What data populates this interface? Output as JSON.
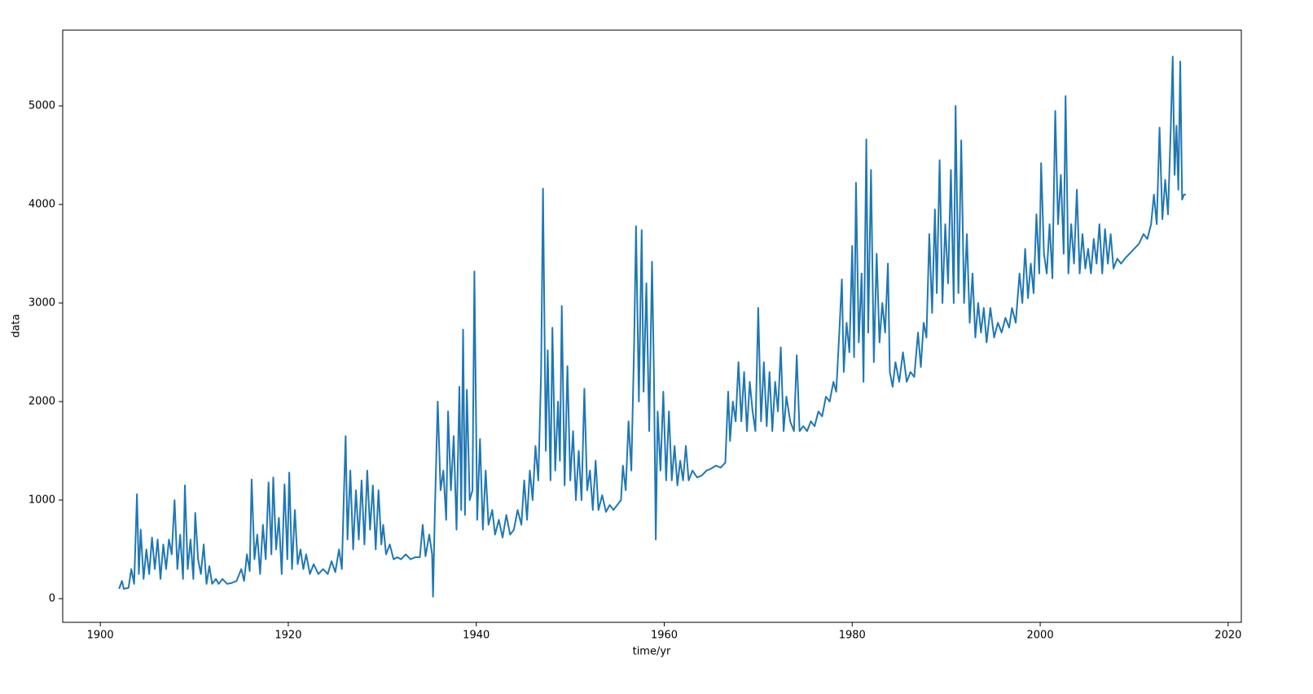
{
  "chart_data": {
    "type": "line",
    "xlabel": "time/yr",
    "ylabel": "data",
    "color": "#1f77b4",
    "xlim": [
      1896.0,
      2021.4
    ],
    "ylim": [
      -240,
      5769
    ],
    "xticks": [
      1900,
      1920,
      1940,
      1960,
      1980,
      2000,
      2020
    ],
    "yticks": [
      0,
      1000,
      2000,
      3000,
      4000,
      5000
    ],
    "x": [
      1902.0,
      1902.3,
      1902.5,
      1903.0,
      1903.3,
      1903.6,
      1903.9,
      1904.1,
      1904.3,
      1904.6,
      1904.9,
      1905.2,
      1905.5,
      1905.8,
      1906.1,
      1906.4,
      1906.7,
      1907.0,
      1907.3,
      1907.6,
      1907.9,
      1908.2,
      1908.5,
      1908.8,
      1909.0,
      1909.3,
      1909.6,
      1909.9,
      1910.1,
      1910.4,
      1910.7,
      1911.0,
      1911.3,
      1911.6,
      1911.9,
      1912.3,
      1912.6,
      1913.0,
      1913.5,
      1914.0,
      1914.5,
      1915.0,
      1915.3,
      1915.6,
      1915.9,
      1916.1,
      1916.4,
      1916.7,
      1917.0,
      1917.3,
      1917.6,
      1917.9,
      1918.2,
      1918.4,
      1918.7,
      1919.0,
      1919.3,
      1919.6,
      1919.9,
      1920.1,
      1920.4,
      1920.7,
      1921.0,
      1921.3,
      1921.6,
      1921.9,
      1922.3,
      1922.7,
      1923.2,
      1923.7,
      1924.2,
      1924.6,
      1925.0,
      1925.4,
      1925.7,
      1925.9,
      1926.1,
      1926.3,
      1926.6,
      1926.9,
      1927.2,
      1927.5,
      1927.8,
      1928.1,
      1928.4,
      1928.7,
      1929.0,
      1929.3,
      1929.6,
      1929.9,
      1930.1,
      1930.4,
      1930.8,
      1931.2,
      1931.6,
      1932.0,
      1932.5,
      1933.0,
      1933.5,
      1934.0,
      1934.3,
      1934.6,
      1935.0,
      1935.3,
      1935.4,
      1935.6,
      1935.9,
      1936.2,
      1936.5,
      1936.8,
      1937.0,
      1937.3,
      1937.6,
      1937.9,
      1938.2,
      1938.4,
      1938.6,
      1938.8,
      1939.0,
      1939.3,
      1939.6,
      1939.8,
      1940.1,
      1940.4,
      1940.7,
      1941.0,
      1941.3,
      1941.7,
      1942.0,
      1942.4,
      1942.8,
      1943.2,
      1943.6,
      1944.0,
      1944.4,
      1944.8,
      1945.1,
      1945.4,
      1945.7,
      1946.0,
      1946.3,
      1946.6,
      1946.9,
      1947.1,
      1947.4,
      1947.6,
      1947.9,
      1948.1,
      1948.4,
      1948.7,
      1948.9,
      1949.1,
      1949.4,
      1949.7,
      1950.0,
      1950.3,
      1950.6,
      1950.9,
      1951.2,
      1951.5,
      1951.8,
      1952.1,
      1952.4,
      1952.7,
      1953.0,
      1953.4,
      1953.8,
      1954.2,
      1954.6,
      1955.0,
      1955.4,
      1955.6,
      1955.9,
      1956.2,
      1956.5,
      1956.8,
      1957.0,
      1957.3,
      1957.6,
      1957.8,
      1958.1,
      1958.4,
      1958.7,
      1958.9,
      1959.1,
      1959.3,
      1959.6,
      1959.9,
      1960.2,
      1960.5,
      1960.8,
      1961.1,
      1961.4,
      1961.7,
      1962.0,
      1962.3,
      1962.6,
      1963.0,
      1963.5,
      1964.0,
      1964.5,
      1965.0,
      1965.5,
      1966.0,
      1966.5,
      1966.8,
      1967.0,
      1967.3,
      1967.6,
      1967.9,
      1968.2,
      1968.5,
      1968.8,
      1969.1,
      1969.4,
      1969.7,
      1970.0,
      1970.3,
      1970.6,
      1970.9,
      1971.2,
      1971.5,
      1971.8,
      1972.1,
      1972.4,
      1972.7,
      1973.0,
      1973.4,
      1973.8,
      1974.1,
      1974.4,
      1974.8,
      1975.2,
      1975.6,
      1976.0,
      1976.4,
      1976.8,
      1977.2,
      1977.6,
      1978.0,
      1978.3,
      1978.6,
      1978.9,
      1979.1,
      1979.4,
      1979.7,
      1980.0,
      1980.2,
      1980.4,
      1980.7,
      1981.0,
      1981.2,
      1981.5,
      1981.7,
      1982.0,
      1982.3,
      1982.6,
      1982.9,
      1983.2,
      1983.5,
      1983.8,
      1984.0,
      1984.3,
      1984.6,
      1985.0,
      1985.4,
      1985.8,
      1986.2,
      1986.6,
      1987.0,
      1987.3,
      1987.6,
      1987.9,
      1988.2,
      1988.5,
      1988.8,
      1989.0,
      1989.3,
      1989.6,
      1989.9,
      1990.2,
      1990.5,
      1990.8,
      1991.0,
      1991.3,
      1991.6,
      1991.9,
      1992.2,
      1992.5,
      1992.8,
      1993.1,
      1993.4,
      1993.7,
      1994.0,
      1994.3,
      1994.7,
      1995.1,
      1995.5,
      1995.9,
      1996.3,
      1996.7,
      1997.0,
      1997.4,
      1997.8,
      1998.1,
      1998.4,
      1998.7,
      1999.0,
      1999.3,
      1999.6,
      1999.9,
      2000.1,
      2000.4,
      2000.7,
      2001.0,
      2001.3,
      2001.6,
      2001.9,
      2002.2,
      2002.5,
      2002.7,
      2003.0,
      2003.3,
      2003.6,
      2003.9,
      2004.2,
      2004.5,
      2004.8,
      2005.1,
      2005.4,
      2005.7,
      2006.0,
      2006.3,
      2006.6,
      2006.9,
      2007.2,
      2007.5,
      2007.8,
      2008.2,
      2008.6,
      2009.0,
      2009.5,
      2010.0,
      2010.5,
      2011.0,
      2011.4,
      2011.8,
      2012.1,
      2012.4,
      2012.7,
      2013.0,
      2013.3,
      2013.6,
      2013.9,
      2014.1,
      2014.3,
      2014.5,
      2014.7,
      2014.9,
      2015.1,
      2015.3,
      2015.5
    ],
    "values": [
      100,
      180,
      100,
      110,
      300,
      150,
      1060,
      250,
      700,
      200,
      500,
      250,
      620,
      300,
      600,
      200,
      550,
      300,
      600,
      450,
      1000,
      300,
      650,
      200,
      1150,
      300,
      600,
      200,
      870,
      400,
      250,
      550,
      150,
      330,
      150,
      200,
      150,
      200,
      150,
      160,
      180,
      300,
      180,
      450,
      280,
      1210,
      400,
      650,
      250,
      750,
      400,
      1180,
      450,
      1230,
      500,
      820,
      250,
      1160,
      400,
      1280,
      300,
      900,
      350,
      500,
      300,
      450,
      250,
      350,
      250,
      300,
      250,
      380,
      270,
      500,
      300,
      1000,
      1650,
      600,
      1300,
      500,
      1100,
      600,
      1200,
      550,
      1300,
      700,
      1150,
      500,
      1100,
      550,
      750,
      450,
      550,
      400,
      420,
      400,
      450,
      400,
      420,
      420,
      750,
      430,
      650,
      450,
      20,
      900,
      2000,
      1100,
      1300,
      800,
      1900,
      1100,
      1650,
      700,
      2150,
      900,
      2730,
      850,
      2120,
      1000,
      1100,
      3320,
      800,
      1620,
      700,
      1300,
      750,
      900,
      650,
      800,
      620,
      850,
      650,
      700,
      900,
      750,
      1200,
      800,
      1300,
      1000,
      1550,
      1200,
      2300,
      4160,
      1500,
      2520,
      1200,
      2750,
      1300,
      2000,
      1400,
      2970,
      1150,
      2360,
      1200,
      1700,
      1000,
      1500,
      1000,
      2130,
      1100,
      1300,
      900,
      1400,
      900,
      1050,
      880,
      950,
      900,
      950,
      1000,
      1350,
      1100,
      1800,
      1300,
      2600,
      3780,
      2000,
      3740,
      2100,
      3200,
      1700,
      3420,
      2300,
      600,
      1900,
      1300,
      2100,
      1200,
      1900,
      1200,
      1550,
      1150,
      1400,
      1200,
      1550,
      1200,
      1300,
      1230,
      1250,
      1300,
      1320,
      1350,
      1330,
      1380,
      2100,
      1600,
      2000,
      1800,
      2400,
      1800,
      2300,
      1700,
      2200,
      1900,
      1700,
      2950,
      1800,
      2400,
      1750,
      2300,
      1700,
      2200,
      1900,
      2550,
      1700,
      2050,
      1800,
      1700,
      2470,
      1700,
      1750,
      1700,
      1800,
      1750,
      1900,
      1850,
      2050,
      2000,
      2200,
      2100,
      2650,
      3240,
      2300,
      2800,
      2500,
      3580,
      2450,
      4220,
      2600,
      3300,
      2200,
      4660,
      2700,
      4350,
      2400,
      3500,
      2600,
      3000,
      2700,
      3400,
      2300,
      2150,
      2400,
      2200,
      2500,
      2200,
      2300,
      2250,
      2700,
      2350,
      2800,
      2650,
      3700,
      2900,
      3950,
      3100,
      4450,
      3000,
      3800,
      3200,
      4350,
      3000,
      5000,
      3100,
      4650,
      3000,
      3700,
      2800,
      3300,
      2650,
      3000,
      2700,
      2950,
      2600,
      2950,
      2650,
      2800,
      2700,
      2850,
      2750,
      2950,
      2800,
      3300,
      3000,
      3550,
      3050,
      3400,
      3100,
      3900,
      3300,
      4420,
      3500,
      3300,
      3800,
      3250,
      4950,
      3800,
      4300,
      3500,
      5100,
      3300,
      3800,
      3400,
      4150,
      3300,
      3700,
      3350,
      3550,
      3300,
      3650,
      3400,
      3800,
      3300,
      3750,
      3400,
      3700,
      3350,
      3450,
      3400,
      3450,
      3500,
      3550,
      3600,
      3700,
      3650,
      3800,
      4100,
      3800,
      4780,
      3850,
      4250,
      3900,
      4800,
      5500,
      4300,
      4800,
      4150,
      5450,
      4050,
      4100,
      4100
    ]
  }
}
